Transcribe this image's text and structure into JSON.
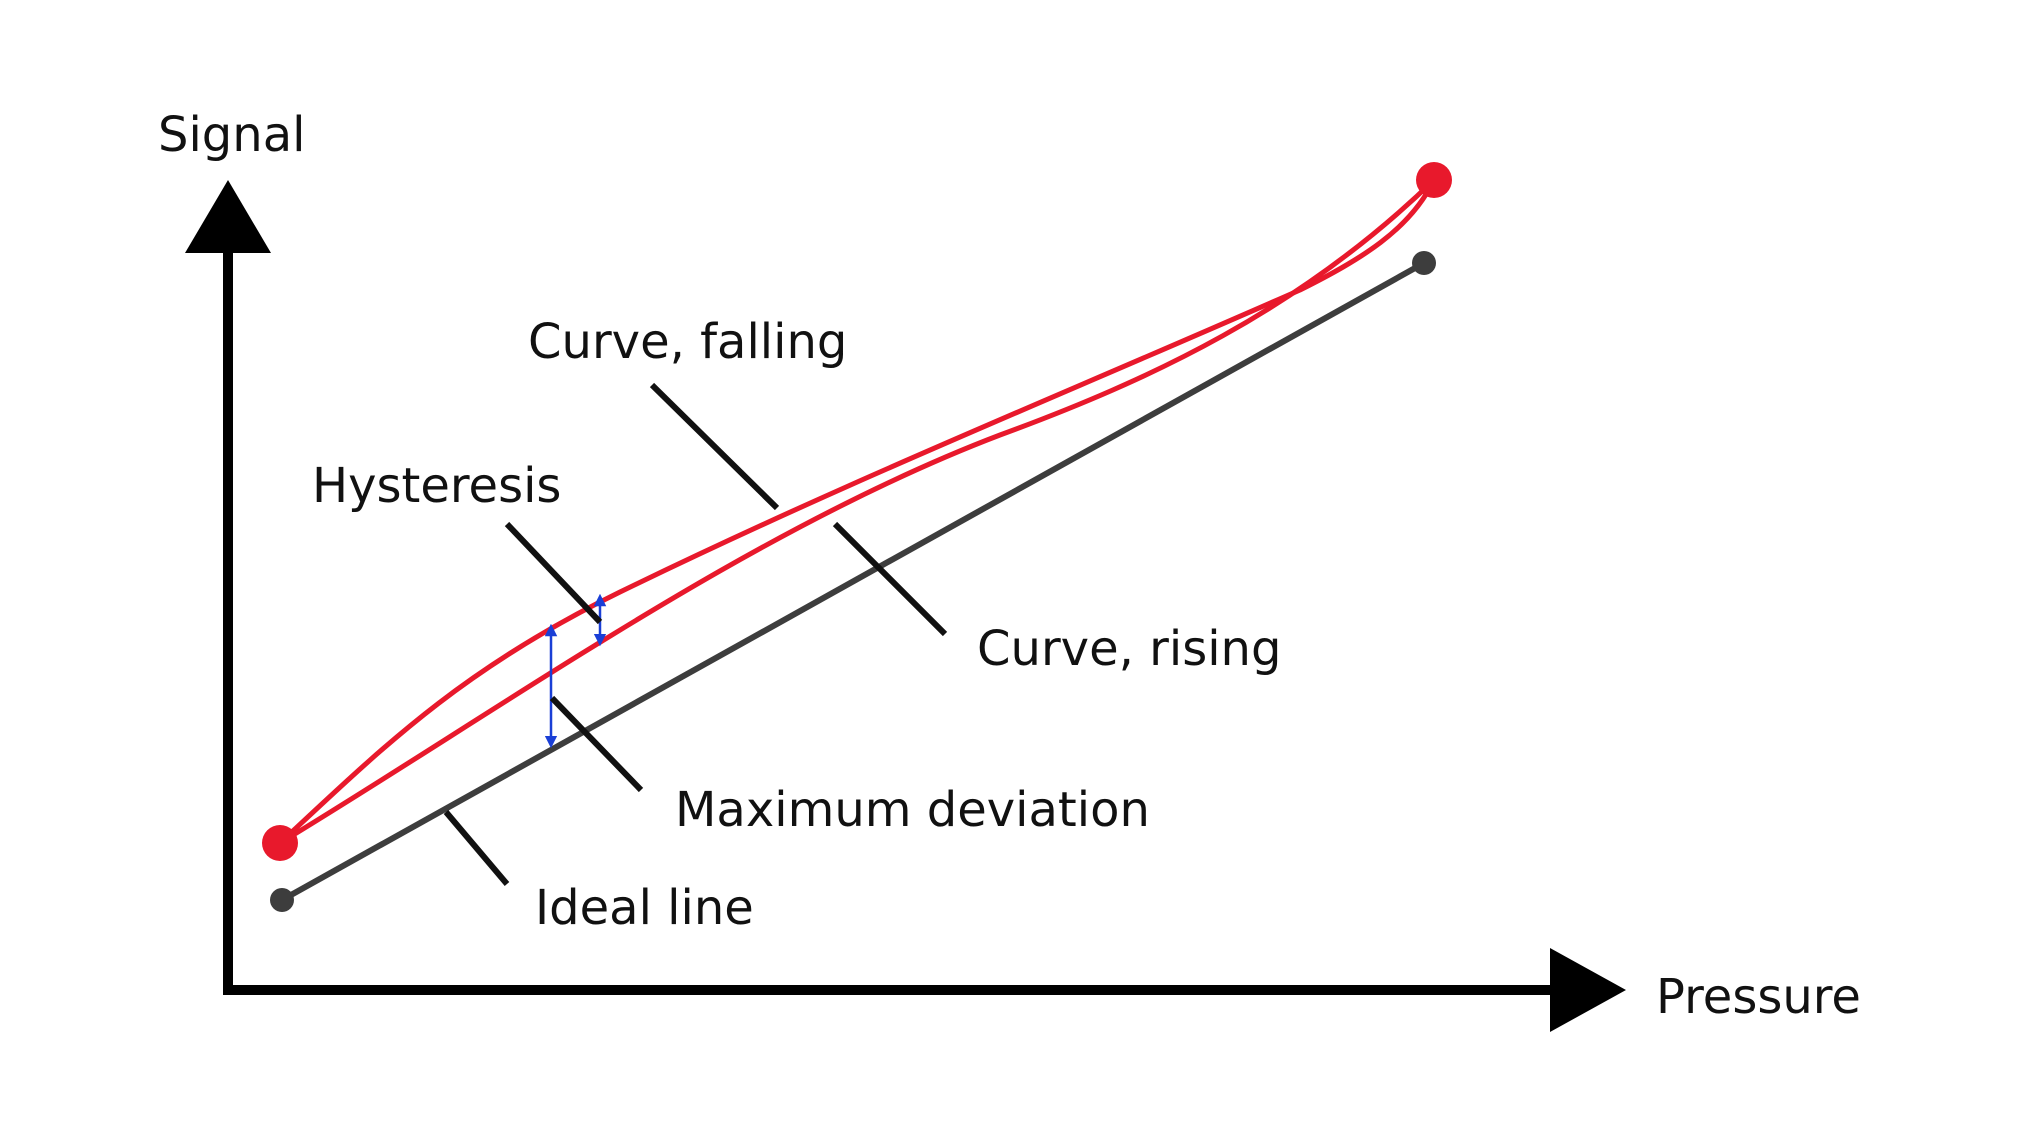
{
  "axes": {
    "y_label": "Signal",
    "x_label": "Pressure"
  },
  "labels": {
    "curve_falling": "Curve, falling",
    "hysteresis": "Hysteresis",
    "curve_rising": "Curve, rising",
    "maximum_deviation": "Maximum deviation",
    "ideal_line": "Ideal line"
  },
  "colors": {
    "axis": "#000000",
    "curve": "#e8192c",
    "ideal_line": "#3d3d3d",
    "deviation_arrow": "#1a3fd6",
    "leader": "#111111",
    "text": "#111111"
  }
}
